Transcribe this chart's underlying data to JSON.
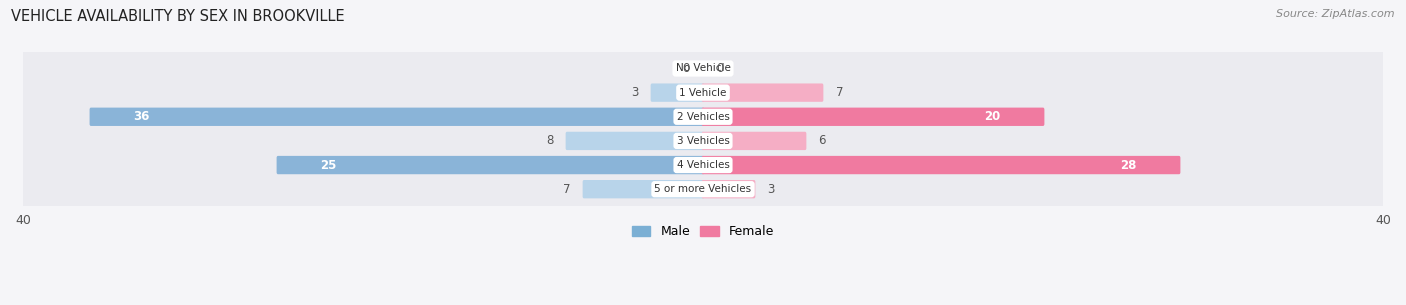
{
  "title": "VEHICLE AVAILABILITY BY SEX IN BROOKVILLE",
  "source": "Source: ZipAtlas.com",
  "categories": [
    "No Vehicle",
    "1 Vehicle",
    "2 Vehicles",
    "3 Vehicles",
    "4 Vehicles",
    "5 or more Vehicles"
  ],
  "male_values": [
    0,
    3,
    36,
    8,
    25,
    7
  ],
  "female_values": [
    0,
    7,
    20,
    6,
    28,
    3
  ],
  "male_color": "#8ab4d8",
  "female_color": "#f07aa0",
  "male_color_light": "#b8d4ea",
  "female_color_light": "#f5aec5",
  "row_bg_color": "#ebebf0",
  "bg_color": "#f5f5f8",
  "label_outside_color": "#555555",
  "label_inside_color": "#ffffff",
  "xlim": 40,
  "legend_male_color": "#7bafd4",
  "legend_female_color": "#f07aa0",
  "threshold_inside": 10
}
